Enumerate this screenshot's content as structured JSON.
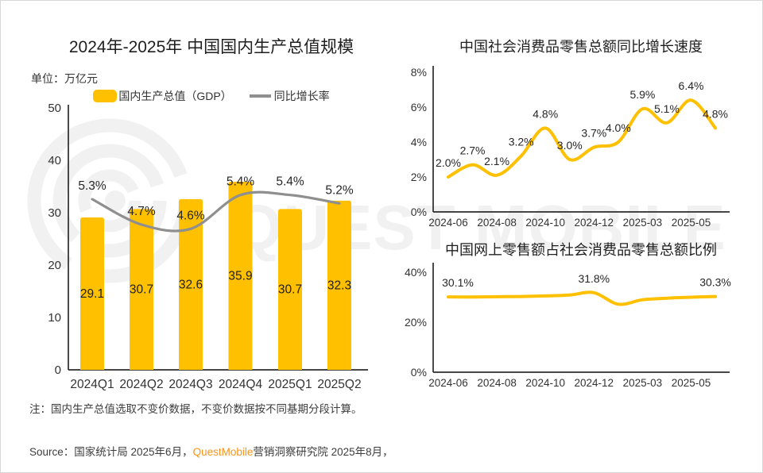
{
  "watermark": {
    "text": "QUEST MOBILE"
  },
  "colors": {
    "accent_yellow": "#FFC000",
    "line_gray": "#8f8f8f",
    "brand_orange": "#F7941E",
    "watermark_gray": "#f1f1f1"
  },
  "footer": {
    "note": "注：国内生产总值选取不变价数据，不变价数据按不同基期分段计算。",
    "source_prefix": "Source：国家统计局 2025年6月，",
    "source_brand": "QuestMobile",
    "source_suffix": "营销洞察研究院 2025年8月，"
  },
  "chart_data": [
    {
      "id": "gdp",
      "type": "bar",
      "title": "2024年-2025年 中国国内生产总值规模",
      "unit_label": "单位：万亿元",
      "legend": [
        {
          "label": "国内生产总值（GDP）",
          "marker": "bar",
          "color": "#FFC000"
        },
        {
          "label": "同比增长率",
          "marker": "line",
          "color": "#8f8f8f"
        }
      ],
      "categories": [
        "2024Q1",
        "2024Q2",
        "2024Q3",
        "2024Q4",
        "2025Q1",
        "2025Q2"
      ],
      "values": [
        29.1,
        30.7,
        32.6,
        35.9,
        30.7,
        32.3
      ],
      "bar_labels": [
        "29.1",
        "30.7",
        "32.6",
        "35.9",
        "30.7",
        "32.3"
      ],
      "line_series_name": "同比增长率",
      "line_values_pct": [
        5.3,
        4.7,
        4.6,
        5.4,
        5.4,
        5.2
      ],
      "line_labels": [
        "5.3%",
        "4.7%",
        "4.6%",
        "5.4%",
        "5.4%",
        "5.2%"
      ],
      "ylabel": "万亿元",
      "y_ticks": [
        0,
        10,
        20,
        30,
        40,
        50
      ],
      "ylim": [
        0,
        50
      ],
      "grid": false,
      "legend_position": "top"
    },
    {
      "id": "retail_growth",
      "type": "line",
      "title": "中国社会消费品零售总额同比增长速度",
      "x_tick_labels": [
        "2024-06",
        "2024-08",
        "2024-10",
        "2024-12",
        "2025-03",
        "2025-05"
      ],
      "values_pct": [
        2.0,
        2.7,
        2.1,
        3.2,
        4.8,
        3.0,
        3.7,
        4.0,
        5.9,
        5.1,
        6.4,
        4.8
      ],
      "point_labels": [
        "2.0%",
        "2.7%",
        "2.1%",
        "3.2%",
        "4.8%",
        "3.0%",
        "3.7%",
        "4.0%",
        "5.9%",
        "5.1%",
        "6.4%",
        "4.8%"
      ],
      "y_ticks": [
        0,
        2,
        4,
        6,
        8
      ],
      "y_tick_labels": [
        "0%",
        "2%",
        "4%",
        "6%",
        "8%"
      ],
      "ylim": [
        0,
        8
      ],
      "grid": false
    },
    {
      "id": "online_share",
      "type": "line",
      "title": "中国网上零售额占社会消费品零售总额比例",
      "x_tick_labels": [
        "2024-06",
        "2024-08",
        "2024-10",
        "2024-12",
        "2025-03",
        "2025-05"
      ],
      "values_pct": [
        30.1,
        30.1,
        30.2,
        30.3,
        30.5,
        30.9,
        31.8,
        27.2,
        29.0,
        29.6,
        30.0,
        30.3
      ],
      "labeled_points": [
        {
          "index": 0,
          "label": "30.1%"
        },
        {
          "index": 6,
          "label": "31.8%"
        },
        {
          "index": 11,
          "label": "30.3%"
        }
      ],
      "y_ticks": [
        0,
        20,
        40
      ],
      "y_tick_labels": [
        "0%",
        "20%",
        "40%"
      ],
      "ylim": [
        0,
        40
      ],
      "grid": false
    }
  ]
}
